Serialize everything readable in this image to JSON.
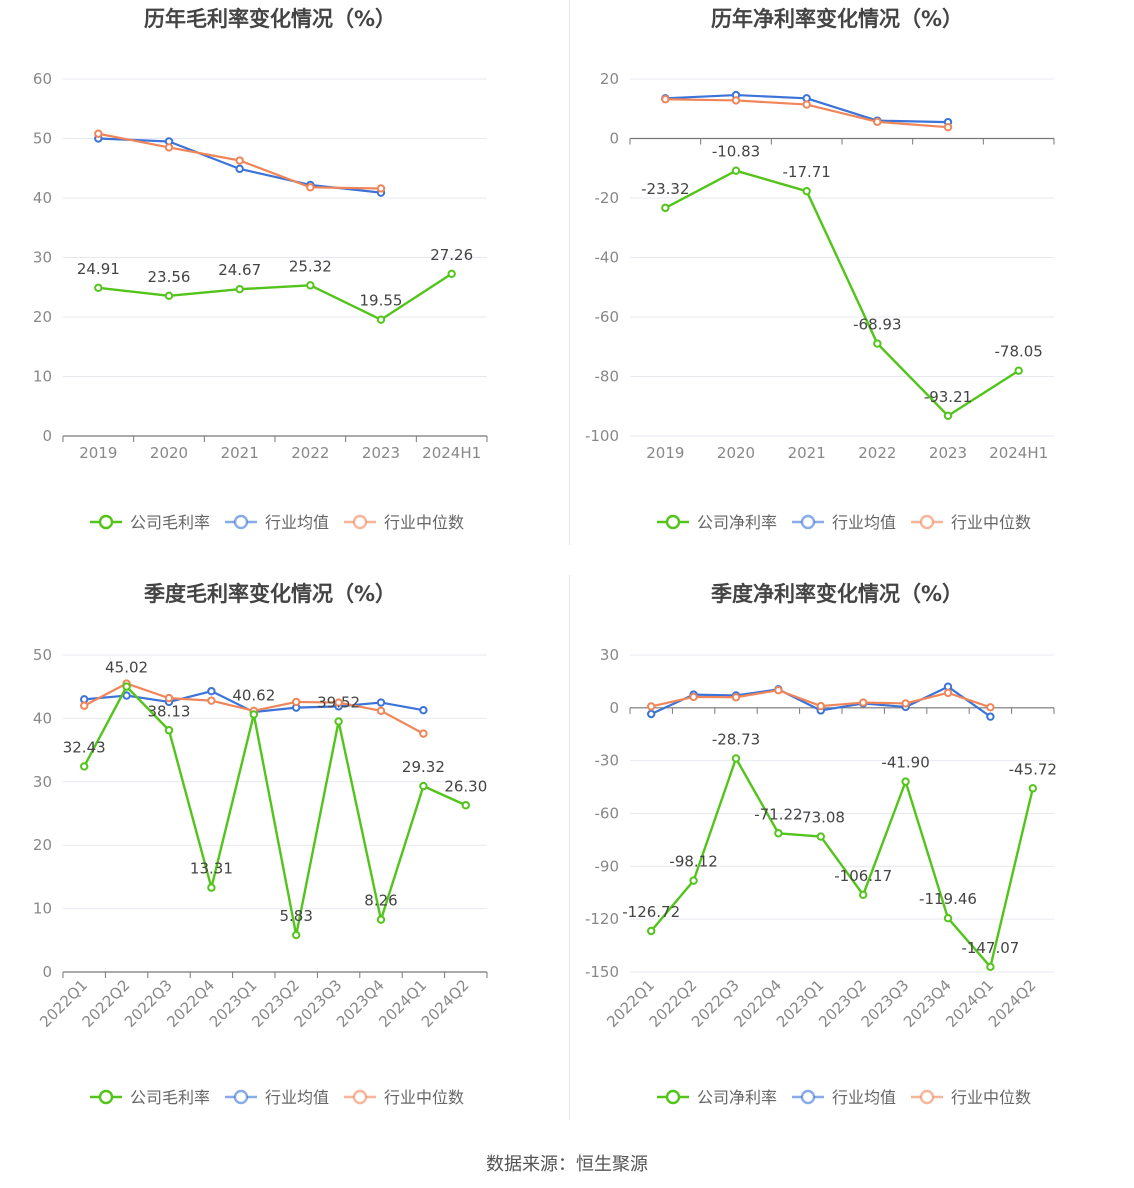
{
  "source_text": "数据来源：恒生聚源",
  "colors": {
    "company": "#52c41a",
    "avg": "#3b73d9",
    "median": "#f0855a"
  },
  "legend": {
    "avg": "行业均值",
    "median": "行业中位数"
  },
  "chart_data": [
    {
      "type": "line",
      "title": "历年毛利率变化情况（%）",
      "x": [
        "2019",
        "2020",
        "2021",
        "2022",
        "2023",
        "2024H1"
      ],
      "ylim": [
        0,
        60
      ],
      "yticks": [
        0,
        10,
        20,
        30,
        40,
        50,
        60
      ],
      "legend_position": "bottom",
      "series": [
        {
          "name": "公司毛利率",
          "key": "company",
          "values": [
            24.91,
            23.56,
            24.67,
            25.32,
            19.55,
            27.26
          ],
          "labels": [
            "24.91",
            "23.56",
            "24.67",
            "25.32",
            "19.55",
            "27.26"
          ]
        },
        {
          "name": "行业均值",
          "key": "avg",
          "values": [
            50.0,
            49.5,
            44.9,
            42.2,
            40.9,
            null
          ]
        },
        {
          "name": "行业中位数",
          "key": "median",
          "values": [
            50.8,
            48.5,
            46.3,
            41.8,
            41.6,
            null
          ]
        }
      ]
    },
    {
      "type": "line",
      "title": "历年净利率变化情况（%）",
      "x": [
        "2019",
        "2020",
        "2021",
        "2022",
        "2023",
        "2024H1"
      ],
      "ylim": [
        -100,
        20
      ],
      "yticks": [
        -100,
        -80,
        -60,
        -40,
        -20,
        0,
        20
      ],
      "legend_position": "bottom",
      "series": [
        {
          "name": "公司净利率",
          "key": "company",
          "values": [
            -23.32,
            -10.83,
            -17.71,
            -68.93,
            -93.21,
            -78.05
          ],
          "labels": [
            "-23.32",
            "-10.83",
            "-17.71",
            "-68.93",
            "-93.21",
            "-78.05"
          ]
        },
        {
          "name": "行业均值",
          "key": "avg",
          "values": [
            13.5,
            14.6,
            13.5,
            6.0,
            5.5,
            null
          ]
        },
        {
          "name": "行业中位数",
          "key": "median",
          "values": [
            13.2,
            12.8,
            11.4,
            5.6,
            3.8,
            null
          ]
        }
      ]
    },
    {
      "type": "line",
      "title": "季度毛利率变化情况（%）",
      "x": [
        "2022Q1",
        "2022Q2",
        "2022Q3",
        "2022Q4",
        "2023Q1",
        "2023Q2",
        "2023Q3",
        "2023Q4",
        "2024Q1",
        "2024Q2"
      ],
      "ylim": [
        0,
        50
      ],
      "yticks": [
        0,
        10,
        20,
        30,
        40,
        50
      ],
      "rotate_x": true,
      "legend_position": "bottom",
      "series": [
        {
          "name": "公司毛利率",
          "key": "company",
          "values": [
            32.43,
            45.02,
            38.13,
            13.31,
            40.62,
            5.83,
            39.52,
            8.26,
            29.32,
            26.3
          ],
          "labels": [
            "32.43",
            "45.02",
            "38.13",
            "13.31",
            "40.62",
            "5.83",
            "39.52",
            "8.26",
            "29.32",
            "26.30"
          ]
        },
        {
          "name": "行业均值",
          "key": "avg",
          "values": [
            43.0,
            43.6,
            42.6,
            44.3,
            41.0,
            41.7,
            41.9,
            42.5,
            41.3,
            null
          ]
        },
        {
          "name": "行业中位数",
          "key": "median",
          "values": [
            42.0,
            45.5,
            43.2,
            42.8,
            41.2,
            42.6,
            42.5,
            41.2,
            37.6,
            null
          ]
        }
      ]
    },
    {
      "type": "line",
      "title": "季度净利率变化情况（%）",
      "x": [
        "2022Q1",
        "2022Q2",
        "2022Q3",
        "2022Q4",
        "2023Q1",
        "2023Q2",
        "2023Q3",
        "2023Q4",
        "2024Q1",
        "2024Q2"
      ],
      "ylim": [
        -150,
        30
      ],
      "yticks": [
        -150,
        -120,
        -90,
        -60,
        -30,
        0,
        30
      ],
      "rotate_x": true,
      "legend_position": "bottom",
      "series": [
        {
          "name": "公司净利率",
          "key": "company",
          "values": [
            -126.72,
            -98.12,
            -28.73,
            -71.22,
            -73.08,
            -106.17,
            -41.9,
            -119.46,
            -147.07,
            -45.72
          ],
          "labels": [
            "-126.72",
            "-98.12",
            "-28.73",
            "-71.22",
            "-73.08",
            "-106.17",
            "-41.90",
            "-119.46",
            "-147.07",
            "-45.72"
          ]
        },
        {
          "name": "行业均值",
          "key": "avg",
          "values": [
            -3.5,
            7.5,
            7.0,
            10.5,
            -1.5,
            2.5,
            0.5,
            12.0,
            -5.0,
            null
          ]
        },
        {
          "name": "行业中位数",
          "key": "median",
          "values": [
            0.8,
            6.2,
            6.0,
            10.0,
            1.0,
            3.0,
            2.5,
            8.5,
            0.3,
            null
          ]
        }
      ]
    }
  ]
}
